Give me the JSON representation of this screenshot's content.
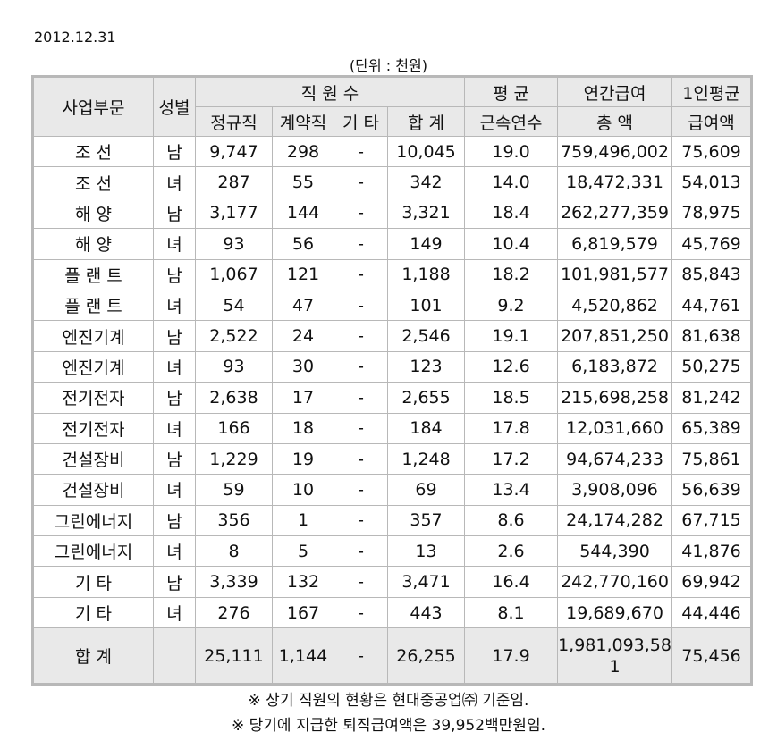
{
  "date": "2012.12.31",
  "unit_note": "(단위 : 천원)",
  "headers": {
    "division": "사업부문",
    "gender": "성별",
    "staff_group": "직 원 수",
    "regular": "정규직",
    "contract": "계약직",
    "other": "기 타",
    "subtotal": "합 계",
    "tenure_line1": "평 균",
    "tenure_line2": "근속연수",
    "salary_line1": "연간급여",
    "salary_line2": "총 액",
    "avg_line1": "1인평균",
    "avg_line2": "급여액"
  },
  "rows": [
    {
      "division": "조 선",
      "gender": "남",
      "regular": "9,747",
      "contract": "298",
      "other": "-",
      "total": "10,045",
      "tenure": "19.0",
      "salary": "759,496,002",
      "avg": "75,609"
    },
    {
      "division": "조 선",
      "gender": "녀",
      "regular": "287",
      "contract": "55",
      "other": "-",
      "total": "342",
      "tenure": "14.0",
      "salary": "18,472,331",
      "avg": "54,013"
    },
    {
      "division": "해 양",
      "gender": "남",
      "regular": "3,177",
      "contract": "144",
      "other": "-",
      "total": "3,321",
      "tenure": "18.4",
      "salary": "262,277,359",
      "avg": "78,975"
    },
    {
      "division": "해 양",
      "gender": "녀",
      "regular": "93",
      "contract": "56",
      "other": "-",
      "total": "149",
      "tenure": "10.4",
      "salary": "6,819,579",
      "avg": "45,769"
    },
    {
      "division": "플 랜 트",
      "gender": "남",
      "regular": "1,067",
      "contract": "121",
      "other": "-",
      "total": "1,188",
      "tenure": "18.2",
      "salary": "101,981,577",
      "avg": "85,843"
    },
    {
      "division": "플 랜 트",
      "gender": "녀",
      "regular": "54",
      "contract": "47",
      "other": "-",
      "total": "101",
      "tenure": "9.2",
      "salary": "4,520,862",
      "avg": "44,761"
    },
    {
      "division": "엔진기계",
      "gender": "남",
      "regular": "2,522",
      "contract": "24",
      "other": "-",
      "total": "2,546",
      "tenure": "19.1",
      "salary": "207,851,250",
      "avg": "81,638"
    },
    {
      "division": "엔진기계",
      "gender": "녀",
      "regular": "93",
      "contract": "30",
      "other": "-",
      "total": "123",
      "tenure": "12.6",
      "salary": "6,183,872",
      "avg": "50,275"
    },
    {
      "division": "전기전자",
      "gender": "남",
      "regular": "2,638",
      "contract": "17",
      "other": "-",
      "total": "2,655",
      "tenure": "18.5",
      "salary": "215,698,258",
      "avg": "81,242"
    },
    {
      "division": "전기전자",
      "gender": "녀",
      "regular": "166",
      "contract": "18",
      "other": "-",
      "total": "184",
      "tenure": "17.8",
      "salary": "12,031,660",
      "avg": "65,389"
    },
    {
      "division": "건설장비",
      "gender": "남",
      "regular": "1,229",
      "contract": "19",
      "other": "-",
      "total": "1,248",
      "tenure": "17.2",
      "salary": "94,674,233",
      "avg": "75,861"
    },
    {
      "division": "건설장비",
      "gender": "녀",
      "regular": "59",
      "contract": "10",
      "other": "-",
      "total": "69",
      "tenure": "13.4",
      "salary": "3,908,096",
      "avg": "56,639"
    },
    {
      "division": "그린에너지",
      "gender": "남",
      "regular": "356",
      "contract": "1",
      "other": "-",
      "total": "357",
      "tenure": "8.6",
      "salary": "24,174,282",
      "avg": "67,715"
    },
    {
      "division": "그린에너지",
      "gender": "녀",
      "regular": "8",
      "contract": "5",
      "other": "-",
      "total": "13",
      "tenure": "2.6",
      "salary": "544,390",
      "avg": "41,876"
    },
    {
      "division": "기 타",
      "gender": "남",
      "regular": "3,339",
      "contract": "132",
      "other": "-",
      "total": "3,471",
      "tenure": "16.4",
      "salary": "242,770,160",
      "avg": "69,942"
    },
    {
      "division": "기 타",
      "gender": "녀",
      "regular": "276",
      "contract": "167",
      "other": "-",
      "total": "443",
      "tenure": "8.1",
      "salary": "19,689,670",
      "avg": "44,446"
    }
  ],
  "total_row": {
    "label": "합 계",
    "gender": "",
    "regular": "25,111",
    "contract": "1,144",
    "other": "-",
    "total": "26,255",
    "tenure": "17.9",
    "salary": "1,981,093,581",
    "avg": "75,456"
  },
  "notes": [
    "※ 상기 직원의 현황은 현대중공업㈜ 기준임.",
    "※ 당기에 지급한 퇴직급여액은 39,952백만원임."
  ]
}
